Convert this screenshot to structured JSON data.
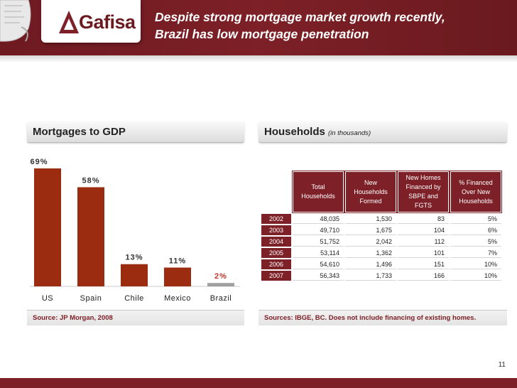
{
  "header": {
    "logo_text": "Gafisa",
    "title_line1": "Despite strong mortgage market growth recently,",
    "title_line2": "Brazil has low mortgage penetration",
    "brand_color": "#7d2027"
  },
  "left_panel": {
    "title": "Mortgages to GDP",
    "source": "Source: JP Morgan, 2008"
  },
  "right_panel": {
    "title": "Households",
    "subtitle": "(in thousands)",
    "source": "Sources: IBGE, BC.  Does not include financing of existing homes."
  },
  "chart_data": {
    "type": "bar",
    "title": "Mortgages to GDP",
    "categories": [
      "US",
      "Spain",
      "Chile",
      "Mexico",
      "Brazil"
    ],
    "values": [
      69,
      58,
      13,
      11,
      2
    ],
    "data_labels": [
      "69%",
      "58%",
      "13%",
      "11%",
      "2%"
    ],
    "xlabel": "",
    "ylabel": "",
    "ylim": [
      0,
      69
    ],
    "grid": false,
    "colors": {
      "default": "#9b2c10",
      "highlight": "#a0a0a0",
      "highlight_label": "#c0392b"
    }
  },
  "table": {
    "columns": [
      "Total Households",
      "New Households Formed",
      "New Homes Financed by SBPE and FGTS",
      "% Financed Over New Households"
    ],
    "rows": [
      {
        "year": "2002",
        "total": "48,035",
        "new": "1,530",
        "financed": "83",
        "pct": "5%"
      },
      {
        "year": "2003",
        "total": "49,710",
        "new": "1,675",
        "financed": "104",
        "pct": "6%"
      },
      {
        "year": "2004",
        "total": "51,752",
        "new": "2,042",
        "financed": "112",
        "pct": "5%"
      },
      {
        "year": "2005",
        "total": "53,114",
        "new": "1,362",
        "financed": "101",
        "pct": "7%"
      },
      {
        "year": "2006",
        "total": "54,610",
        "new": "1,496",
        "financed": "151",
        "pct": "10%"
      },
      {
        "year": "2007",
        "total": "56,343",
        "new": "1,733",
        "financed": "166",
        "pct": "10%"
      }
    ]
  },
  "page_number": "11"
}
